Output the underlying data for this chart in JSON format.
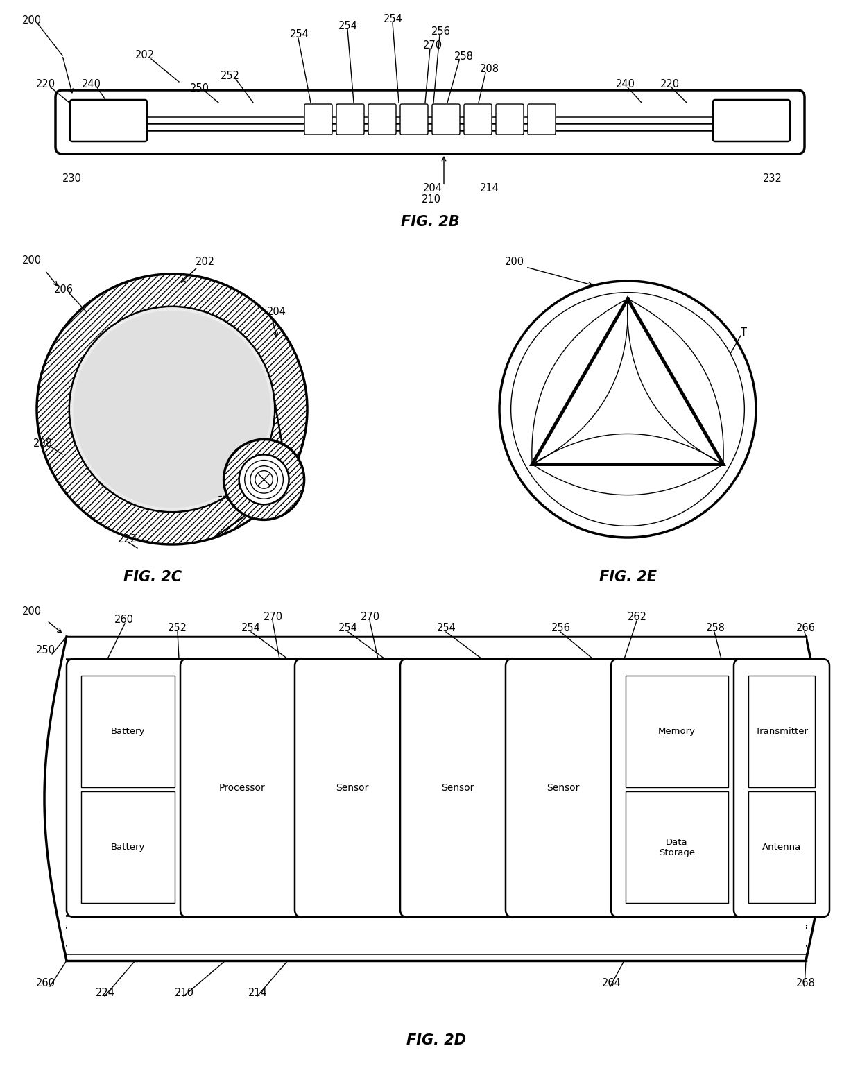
{
  "fig_title_2b": "FIG. 2B",
  "fig_title_2c": "FIG. 2C",
  "fig_title_2e": "FIG. 2E",
  "fig_title_2d": "FIG. 2D",
  "bg_color": "#ffffff",
  "line_color": "#000000",
  "label_fontsize": 10.5,
  "title_fontsize": 15
}
